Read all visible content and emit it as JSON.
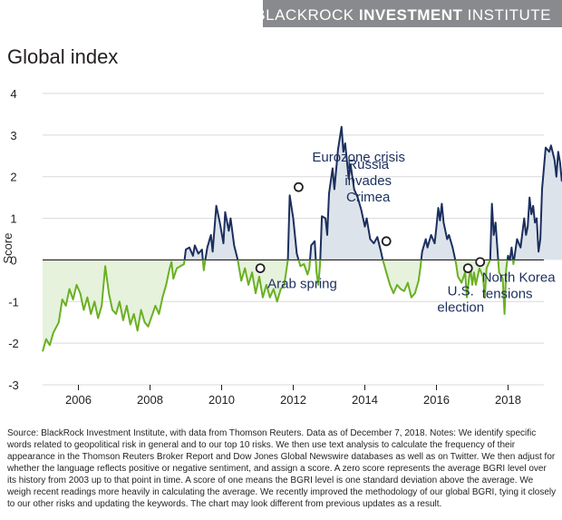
{
  "header": {
    "brand_light": "BLACKROCK ",
    "brand_bold": "INVESTMENT",
    "brand_suffix": " INSTITUTE"
  },
  "source_note": "Source: BlackRock Investment Institute, with data from Thomson Reuters. Data as of December 7, 2018. Notes: We identify specific words related to geopolitical risk in general and to our top 10 risks. We then use text analysis to calculate the frequency of their appearance in the Thomson Reuters Broker Report and Dow Jones Global Newswire databases as well as on Twitter. We then adjust for whether the language reflects positive or negative sentiment, and assign a score. A zero score represents the average BGRI level over its history from 2003 up to that point in time. A score of one means the BGRI level is one standard deviation above the average. We weigh recent readings more heavily in calculating the average. We recently improved the methodology of our global BGRI, tying it closely to our other risks and updating the keywords. The chart may look different from previous updates as a result.",
  "colors": {
    "positive": "#1b2f5e",
    "negative": "#6ab023",
    "positive_fill": "#dde3ea",
    "negative_fill": "#e6f2dc",
    "grid": "#d9d9d9",
    "zero_line": "#231f20"
  },
  "chart_data": {
    "type": "line",
    "title": "Global index",
    "xlabel": "",
    "ylabel": "Score",
    "xlim": [
      2005.0,
      2019.0
    ],
    "ylim": [
      -3,
      4
    ],
    "x_ticks": [
      2006,
      2008,
      2010,
      2012,
      2014,
      2016,
      2018
    ],
    "y_ticks": [
      4,
      3,
      2,
      1,
      0,
      -1,
      -2,
      -3
    ],
    "x_tick_labels": [
      "2006",
      "2008",
      "2010",
      "2012",
      "2014",
      "2016",
      "2018"
    ],
    "y_tick_labels": [
      "4",
      "3",
      "2",
      "1",
      "0",
      "-1",
      "-2",
      "-3"
    ],
    "grid": true,
    "series": [
      {
        "values": [
          [
            2005.0,
            -2.2
          ],
          [
            2005.1,
            -1.9
          ],
          [
            2005.2,
            -2.05
          ],
          [
            2005.3,
            -1.75
          ],
          [
            2005.45,
            -1.5
          ],
          [
            2005.55,
            -0.95
          ],
          [
            2005.65,
            -1.1
          ],
          [
            2005.75,
            -0.7
          ],
          [
            2005.85,
            -0.95
          ],
          [
            2005.95,
            -0.6
          ],
          [
            2006.05,
            -0.8
          ],
          [
            2006.15,
            -1.2
          ],
          [
            2006.25,
            -0.9
          ],
          [
            2006.35,
            -1.3
          ],
          [
            2006.45,
            -1.0
          ],
          [
            2006.55,
            -1.4
          ],
          [
            2006.65,
            -1.1
          ],
          [
            2006.75,
            -0.15
          ],
          [
            2006.85,
            -0.8
          ],
          [
            2006.95,
            -1.2
          ],
          [
            2007.05,
            -1.3
          ],
          [
            2007.15,
            -1.0
          ],
          [
            2007.25,
            -1.45
          ],
          [
            2007.35,
            -1.1
          ],
          [
            2007.45,
            -1.55
          ],
          [
            2007.55,
            -1.3
          ],
          [
            2007.65,
            -1.7
          ],
          [
            2007.75,
            -1.2
          ],
          [
            2007.85,
            -1.5
          ],
          [
            2007.95,
            -1.6
          ],
          [
            2008.05,
            -1.35
          ],
          [
            2008.15,
            -1.1
          ],
          [
            2008.25,
            -1.3
          ],
          [
            2008.35,
            -0.9
          ],
          [
            2008.45,
            -0.6
          ],
          [
            2008.55,
            -0.2
          ],
          [
            2008.6,
            -0.05
          ],
          [
            2008.65,
            -0.45
          ],
          [
            2008.75,
            -0.2
          ],
          [
            2008.85,
            -0.15
          ],
          [
            2008.95,
            -0.1
          ],
          [
            2009.0,
            0.25
          ],
          [
            2009.1,
            0.3
          ],
          [
            2009.2,
            0.1
          ],
          [
            2009.25,
            0.35
          ],
          [
            2009.35,
            0.15
          ],
          [
            2009.45,
            0.25
          ],
          [
            2009.5,
            -0.25
          ],
          [
            2009.6,
            0.3
          ],
          [
            2009.7,
            0.6
          ],
          [
            2009.75,
            0.2
          ],
          [
            2009.85,
            1.3
          ],
          [
            2009.95,
            0.9
          ],
          [
            2010.05,
            0.4
          ],
          [
            2010.1,
            1.15
          ],
          [
            2010.2,
            0.7
          ],
          [
            2010.25,
            1.0
          ],
          [
            2010.35,
            0.35
          ],
          [
            2010.45,
            0.0
          ],
          [
            2010.55,
            -0.5
          ],
          [
            2010.65,
            -0.2
          ],
          [
            2010.75,
            -0.6
          ],
          [
            2010.85,
            -0.3
          ],
          [
            2010.95,
            -0.8
          ],
          [
            2011.05,
            -0.4
          ],
          [
            2011.15,
            -0.9
          ],
          [
            2011.25,
            -0.6
          ],
          [
            2011.35,
            -0.9
          ],
          [
            2011.45,
            -0.7
          ],
          [
            2011.55,
            -1.0
          ],
          [
            2011.65,
            -0.7
          ],
          [
            2011.75,
            -0.6
          ],
          [
            2011.85,
            0.0
          ],
          [
            2011.9,
            1.55
          ],
          [
            2012.0,
            1.0
          ],
          [
            2012.1,
            0.15
          ],
          [
            2012.2,
            -0.15
          ],
          [
            2012.3,
            -0.1
          ],
          [
            2012.4,
            -0.35
          ],
          [
            2012.45,
            -0.2
          ],
          [
            2012.5,
            0.35
          ],
          [
            2012.6,
            0.45
          ],
          [
            2012.65,
            -0.3
          ],
          [
            2012.7,
            -0.6
          ],
          [
            2012.75,
            -0.1
          ],
          [
            2012.8,
            1.05
          ],
          [
            2012.9,
            1.0
          ],
          [
            2012.95,
            0.6
          ],
          [
            2013.0,
            1.6
          ],
          [
            2013.1,
            2.2
          ],
          [
            2013.15,
            1.7
          ],
          [
            2013.25,
            2.65
          ],
          [
            2013.35,
            3.2
          ],
          [
            2013.4,
            2.6
          ],
          [
            2013.45,
            2.8
          ],
          [
            2013.55,
            1.95
          ],
          [
            2013.6,
            2.3
          ],
          [
            2013.7,
            1.7
          ],
          [
            2013.8,
            1.5
          ],
          [
            2013.9,
            1.2
          ],
          [
            2014.0,
            0.8
          ],
          [
            2014.05,
            1.0
          ],
          [
            2014.15,
            0.5
          ],
          [
            2014.25,
            0.4
          ],
          [
            2014.35,
            0.55
          ],
          [
            2014.45,
            0.2
          ],
          [
            2014.5,
            0.0
          ],
          [
            2014.6,
            -0.3
          ],
          [
            2014.7,
            -0.6
          ],
          [
            2014.8,
            -0.8
          ],
          [
            2014.9,
            -0.6
          ],
          [
            2015.0,
            -0.7
          ],
          [
            2015.1,
            -0.75
          ],
          [
            2015.2,
            -0.55
          ],
          [
            2015.3,
            -0.9
          ],
          [
            2015.4,
            -0.8
          ],
          [
            2015.5,
            -0.5
          ],
          [
            2015.55,
            -0.2
          ],
          [
            2015.6,
            0.2
          ],
          [
            2015.7,
            0.5
          ],
          [
            2015.75,
            0.3
          ],
          [
            2015.85,
            0.6
          ],
          [
            2015.95,
            0.4
          ],
          [
            2016.0,
            0.8
          ],
          [
            2016.05,
            1.25
          ],
          [
            2016.1,
            0.95
          ],
          [
            2016.15,
            1.35
          ],
          [
            2016.2,
            0.9
          ],
          [
            2016.3,
            0.5
          ],
          [
            2016.35,
            0.6
          ],
          [
            2016.45,
            0.3
          ],
          [
            2016.5,
            0.1
          ],
          [
            2016.55,
            -0.1
          ],
          [
            2016.6,
            -0.4
          ],
          [
            2016.7,
            -0.55
          ],
          [
            2016.8,
            -0.3
          ],
          [
            2016.85,
            -0.9
          ],
          [
            2016.9,
            -0.5
          ],
          [
            2016.95,
            -0.2
          ],
          [
            2017.0,
            -0.6
          ],
          [
            2017.05,
            -0.3
          ],
          [
            2017.1,
            -0.6
          ],
          [
            2017.2,
            -0.2
          ],
          [
            2017.3,
            -0.4
          ],
          [
            2017.35,
            -0.9
          ],
          [
            2017.4,
            -0.2
          ],
          [
            2017.5,
            0.0
          ],
          [
            2017.55,
            1.35
          ],
          [
            2017.6,
            0.6
          ],
          [
            2017.65,
            0.9
          ],
          [
            2017.75,
            -0.3
          ],
          [
            2017.85,
            -0.45
          ],
          [
            2017.9,
            -1.3
          ],
          [
            2017.95,
            -0.2
          ],
          [
            2018.0,
            0.1
          ],
          [
            2018.05,
            0.0
          ],
          [
            2018.1,
            0.3
          ],
          [
            2018.15,
            -0.1
          ],
          [
            2018.2,
            0.2
          ],
          [
            2018.25,
            0.5
          ],
          [
            2018.35,
            0.3
          ],
          [
            2018.45,
            1.0
          ],
          [
            2018.5,
            0.6
          ],
          [
            2018.55,
            0.8
          ],
          [
            2018.6,
            1.5
          ],
          [
            2018.65,
            1.1
          ],
          [
            2018.7,
            1.3
          ],
          [
            2018.75,
            0.9
          ],
          [
            2018.8,
            1.0
          ],
          [
            2018.85,
            0.2
          ],
          [
            2018.9,
            0.5
          ],
          [
            2018.95,
            1.7
          ],
          [
            2019.0,
            2.2
          ],
          [
            2019.05,
            2.7
          ],
          [
            2019.15,
            2.6
          ],
          [
            2019.2,
            2.75
          ],
          [
            2019.3,
            2.4
          ],
          [
            2019.35,
            2.0
          ],
          [
            2019.4,
            2.6
          ],
          [
            2019.45,
            2.35
          ],
          [
            2019.5,
            1.9
          ],
          [
            2019.55,
            1.9
          ]
        ]
      }
    ],
    "annotations": [
      {
        "text": "Arab spring",
        "x": 2011.08,
        "y": -0.2,
        "label_dx": 8,
        "label_dy": 22,
        "anchor": "start",
        "lines": [
          "Arab spring"
        ]
      },
      {
        "text": "Eurozone crisis",
        "x": 2012.15,
        "y": 1.75,
        "label_dx": 15,
        "label_dy": -28,
        "anchor": "start",
        "lines": [
          "Eurozone crisis"
        ]
      },
      {
        "text": "Russia invades Crimea",
        "x": 2014.6,
        "y": 0.45,
        "label_dx": -20,
        "label_dy": -80,
        "anchor": "middle",
        "lines": [
          "Russia",
          "invades",
          "Crimea"
        ]
      },
      {
        "text": "U.S. election",
        "x": 2016.88,
        "y": -0.2,
        "label_dx": -8,
        "label_dy": 30,
        "anchor": "middle",
        "lines": [
          "U.S.",
          "election"
        ]
      },
      {
        "text": "North Korea tensions",
        "x": 2017.22,
        "y": -0.05,
        "label_dx": 2,
        "label_dy": 22,
        "anchor": "start",
        "lines": [
          "North Korea",
          "tensions"
        ]
      }
    ]
  }
}
